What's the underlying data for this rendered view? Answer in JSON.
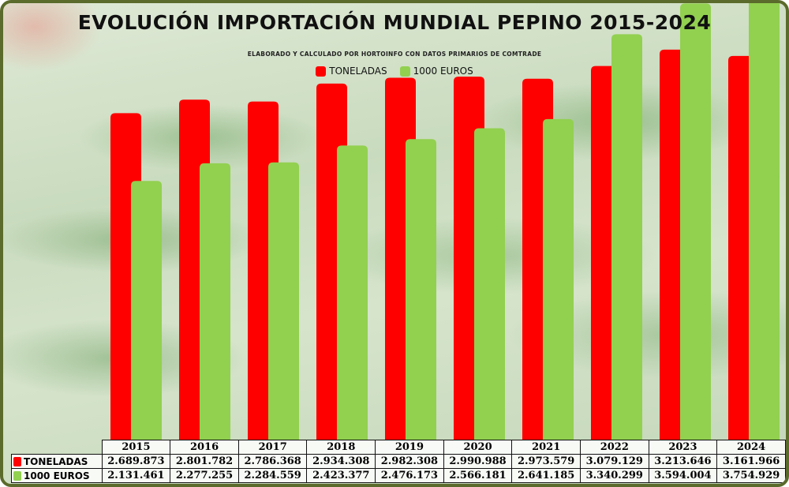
{
  "chart_data": {
    "type": "bar",
    "title": "EVOLUCIÓN IMPORTACIÓN MUNDIAL PEPINO 2015-2024",
    "subtitle": "ELABORADO Y CALCULADO POR HORTOINFO CON DATOS PRIMARIOS DE COMTRADE",
    "categories": [
      "2015",
      "2016",
      "2017",
      "2018",
      "2019",
      "2020",
      "2021",
      "2022",
      "2023",
      "2024"
    ],
    "series": [
      {
        "name": "TONELADAS",
        "color": "#ff0000",
        "values": [
          2689873,
          2801782,
          2786368,
          2934308,
          2982308,
          2990988,
          2973579,
          3079129,
          3213646,
          3161966
        ],
        "labels": [
          "2.689.873",
          "2.801.782",
          "2.786.368",
          "2.934.308",
          "2.982.308",
          "2.990.988",
          "2.973.579",
          "3.079.129",
          "3.213.646",
          "3.161.966"
        ]
      },
      {
        "name": "1000 EUROS",
        "color": "#92d050",
        "values": [
          2131461,
          2277255,
          2284559,
          2423377,
          2476173,
          2566181,
          2641185,
          3340299,
          3594004,
          3754929
        ],
        "labels": [
          "2.131.461",
          "2.277.255",
          "2.284.559",
          "2.423.377",
          "2.476.173",
          "2.566.181",
          "2.641.185",
          "3.340.299",
          "3.594.004",
          "3.754.929"
        ]
      }
    ],
    "ylim": [
      0,
      4000000
    ],
    "legend": "top-center",
    "data_table": true,
    "grid": false
  }
}
